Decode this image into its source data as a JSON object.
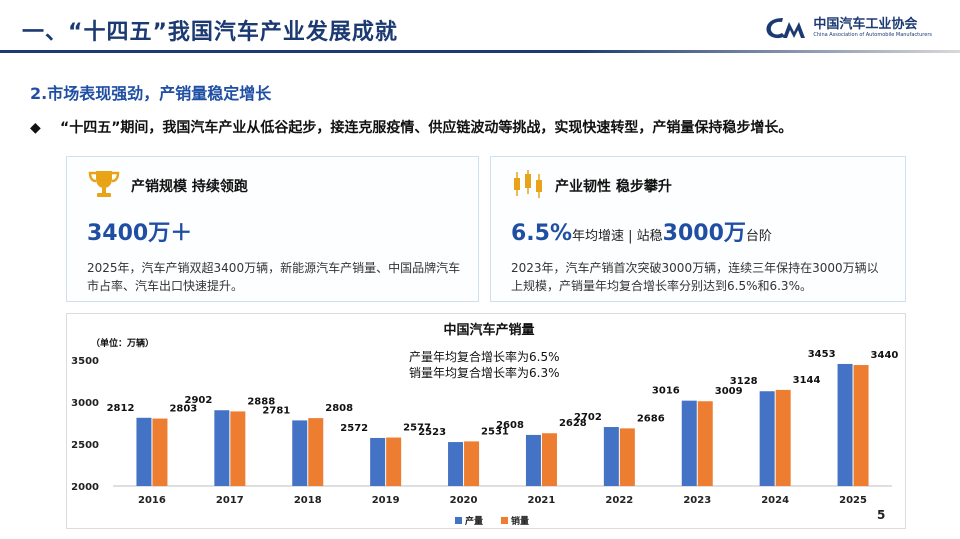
{
  "header": {
    "title": "一、“十四五”我国汽车产业发展成就",
    "logo_cn": "中国汽车工业协会",
    "logo_en": "China Association of Automobile Manufacturers"
  },
  "section": {
    "title": "2.市场表现强劲，产销量稳定增长",
    "bullet_marker": "◆",
    "bullet": "“十四五”期间，我国汽车产业从低谷起步，接连克服疫情、供应链波动等挑战，实现快速转型，产销量保持稳步增长。"
  },
  "cards": [
    {
      "icon": "trophy-icon",
      "title": "产销规模 持续领跑",
      "big_number": "3400万＋",
      "description": "2025年，汽车产销双超3400万辆，新能源汽车产销量、中国品牌汽车市占率、汽车出口快速提升。"
    },
    {
      "icon": "candlestick-icon",
      "title": "产业韧性 稳步攀升",
      "big_number_1": "6.5%",
      "big_text_1": "年均增速 | 站稳",
      "big_number_2": "3000万",
      "big_text_2": "台阶",
      "description": "2023年，汽车产销首次突破3000万辆，连续三年保持在3000万辆以上规模，产销量年均复合增长率分别达到6.5%和6.3%。"
    }
  ],
  "colors": {
    "accent": "#1f4ea3",
    "production": "#4472c4",
    "sales": "#ed7d31",
    "gold": "#e8a317"
  },
  "chart_data": {
    "type": "bar",
    "title": "中国汽车产销量",
    "unit_label": "（单位：万辆）",
    "annotations": [
      "产量年均复合增长率为6.5%",
      "销量年均复合增长率为6.3%"
    ],
    "categories": [
      "2016",
      "2017",
      "2018",
      "2019",
      "2020",
      "2021",
      "2022",
      "2023",
      "2024",
      "2025"
    ],
    "series": [
      {
        "name": "产量",
        "values": [
          2812,
          2902,
          2781,
          2572,
          2523,
          2608,
          2702,
          3016,
          3128,
          3453
        ]
      },
      {
        "name": "销量",
        "values": [
          2803,
          2888,
          2808,
          2577,
          2531,
          2628,
          2686,
          3009,
          3144,
          3440
        ]
      }
    ],
    "ylim": [
      2000,
      3500
    ],
    "yticks": [
      2000,
      2500,
      3000,
      3500
    ],
    "legend": "bottom-center",
    "grid": false
  },
  "page_number": "5"
}
